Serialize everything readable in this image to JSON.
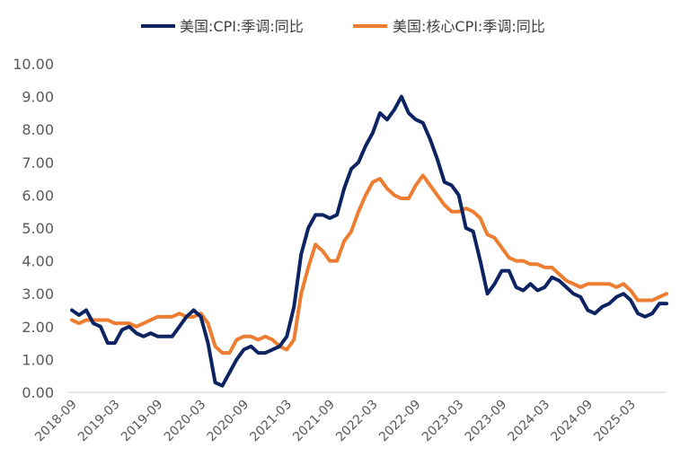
{
  "chart_data": {
    "type": "line",
    "title": "",
    "xlabel": "",
    "ylabel": "",
    "ylim": [
      0,
      10
    ],
    "yticks": [
      "0.00",
      "1.00",
      "2.00",
      "3.00",
      "4.00",
      "5.00",
      "6.00",
      "7.00",
      "8.00",
      "9.00",
      "10.00"
    ],
    "xticks": [
      "2018-09",
      "2019-03",
      "2019-09",
      "2020-03",
      "2020-09",
      "2021-03",
      "2021-09",
      "2022-03",
      "2022-09",
      "2023-03",
      "2023-09",
      "2024-03",
      "2024-09",
      "2025-03"
    ],
    "x_start": "2018-09",
    "x_end": "2025-08",
    "legend_position": "top",
    "grid": false,
    "series": [
      {
        "name": "美国:CPI:季调:同比",
        "color": "#0d2463",
        "values": [
          2.5,
          2.35,
          2.5,
          2.1,
          2.0,
          1.5,
          1.5,
          1.9,
          2.0,
          1.8,
          1.7,
          1.8,
          1.7,
          1.7,
          1.7,
          2.0,
          2.3,
          2.5,
          2.3,
          1.5,
          0.3,
          0.2,
          0.6,
          1.0,
          1.3,
          1.4,
          1.2,
          1.2,
          1.3,
          1.4,
          1.7,
          2.6,
          4.2,
          5.0,
          5.4,
          5.4,
          5.3,
          5.4,
          6.2,
          6.8,
          7.0,
          7.5,
          7.9,
          8.5,
          8.3,
          8.6,
          9.0,
          8.5,
          8.3,
          8.2,
          7.7,
          7.1,
          6.4,
          6.3,
          6.0,
          5.0,
          4.9,
          4.0,
          3.0,
          3.3,
          3.7,
          3.7,
          3.2,
          3.1,
          3.3,
          3.1,
          3.2,
          3.5,
          3.4,
          3.2,
          3.0,
          2.9,
          2.5,
          2.4,
          2.6,
          2.7,
          2.9,
          3.0,
          2.8,
          2.4,
          2.3,
          2.4,
          2.7,
          2.7
        ]
      },
      {
        "name": "美国:核心CPI:季调:同比",
        "color": "#ed7d31",
        "values": [
          2.2,
          2.1,
          2.2,
          2.2,
          2.2,
          2.2,
          2.1,
          2.1,
          2.1,
          2.0,
          2.1,
          2.2,
          2.3,
          2.3,
          2.3,
          2.4,
          2.3,
          2.3,
          2.4,
          2.1,
          1.4,
          1.2,
          1.2,
          1.6,
          1.7,
          1.7,
          1.6,
          1.7,
          1.6,
          1.4,
          1.3,
          1.6,
          3.0,
          3.8,
          4.5,
          4.3,
          4.0,
          4.0,
          4.6,
          4.9,
          5.5,
          6.0,
          6.4,
          6.5,
          6.2,
          6.0,
          5.9,
          5.9,
          6.3,
          6.6,
          6.3,
          6.0,
          5.7,
          5.5,
          5.5,
          5.6,
          5.5,
          5.3,
          4.8,
          4.7,
          4.4,
          4.1,
          4.0,
          4.0,
          3.9,
          3.9,
          3.8,
          3.8,
          3.6,
          3.4,
          3.3,
          3.2,
          3.3,
          3.3,
          3.3,
          3.3,
          3.2,
          3.3,
          3.1,
          2.8,
          2.8,
          2.8,
          2.9,
          3.0
        ]
      }
    ]
  }
}
